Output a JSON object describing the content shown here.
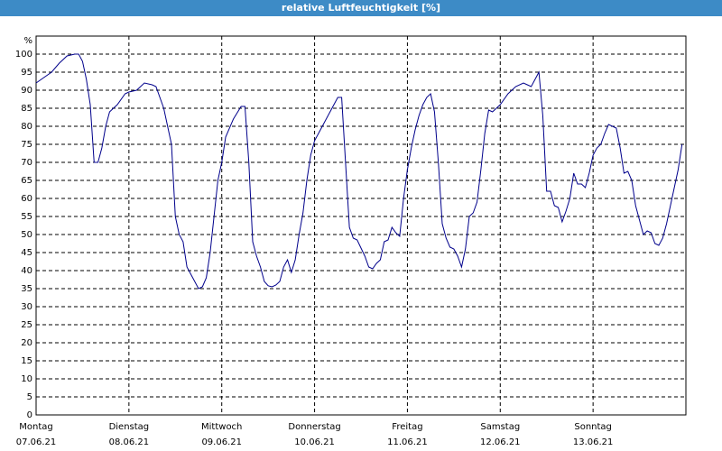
{
  "chart_data": {
    "type": "line",
    "title": "relative Luftfeuchtigkeit [%]",
    "ylabel": "%",
    "xlim": [
      0,
      168
    ],
    "xticks": [
      {
        "value": 0,
        "label": "Montag",
        "date": "07.06.21"
      },
      {
        "value": 24,
        "label": "Dienstag",
        "date": "08.06.21"
      },
      {
        "value": 48,
        "label": "Mittwoch",
        "date": "09.06.21"
      },
      {
        "value": 72,
        "label": "Donnerstag",
        "date": "10.06.21"
      },
      {
        "value": 96,
        "label": "Freitag",
        "date": "11.06.21"
      },
      {
        "value": 120,
        "label": "Samstag",
        "date": "12.06.21"
      },
      {
        "value": 144,
        "label": "Sonntag",
        "date": "13.06.21"
      }
    ],
    "ylim": [
      0,
      105
    ],
    "yticks": [
      0,
      5,
      10,
      15,
      20,
      25,
      30,
      35,
      40,
      45,
      50,
      55,
      60,
      65,
      70,
      75,
      80,
      85,
      90,
      95,
      100
    ],
    "grid": true,
    "x": [
      0,
      2,
      4,
      6,
      8,
      10,
      11,
      12,
      13,
      14,
      15,
      16,
      17,
      18,
      19,
      21,
      23,
      24,
      26,
      28,
      30,
      31,
      33,
      35,
      36,
      37,
      38,
      39,
      41,
      42,
      43,
      44,
      45,
      46,
      47,
      48,
      49,
      51,
      53,
      54,
      55,
      56,
      57,
      58,
      59,
      60,
      61,
      62,
      63,
      64,
      65,
      66,
      67,
      68,
      69,
      70,
      71,
      72,
      74,
      76,
      78,
      79,
      80,
      81,
      82,
      83,
      85,
      86,
      87,
      88,
      89,
      90,
      91,
      92,
      93,
      94,
      95,
      96,
      97,
      98,
      99,
      100,
      101,
      102,
      103,
      104,
      105,
      106,
      107,
      108,
      109,
      110,
      111,
      112,
      113,
      114,
      115,
      116,
      117,
      118,
      120,
      122,
      124,
      126,
      127,
      128,
      129,
      130,
      131,
      132,
      133,
      134,
      135,
      136,
      137,
      138,
      139,
      140,
      141,
      142,
      143,
      144,
      145,
      146,
      147,
      148,
      149,
      150,
      151,
      152,
      153,
      154,
      155,
      156,
      157,
      158,
      159,
      160,
      161,
      162,
      163,
      164,
      165,
      166,
      167
    ],
    "series": [
      {
        "name": "relative Luftfeuchtigkeit",
        "color": "#00008b",
        "values": [
          92,
          93.5,
          95,
          97.5,
          99.5,
          100,
          100,
          98,
          93,
          86,
          70,
          70,
          74,
          80,
          84,
          86,
          89,
          89.5,
          90,
          92,
          91.5,
          91,
          85,
          75,
          55,
          50,
          48,
          41,
          37,
          35,
          35.5,
          38,
          45,
          55,
          65,
          70,
          77,
          82,
          85.5,
          85.5,
          70,
          48,
          44,
          41,
          37,
          35.8,
          35.5,
          36,
          37,
          41,
          43,
          39.5,
          43,
          50,
          56,
          65,
          72,
          76,
          80,
          84,
          88,
          88,
          70,
          52,
          49,
          48.5,
          44,
          41,
          40.5,
          42,
          43,
          48,
          48.5,
          52,
          50.5,
          49.5,
          60,
          68,
          74,
          79,
          83,
          86,
          88,
          89,
          84,
          70,
          53,
          49,
          46.5,
          46,
          44,
          41,
          46,
          55,
          56,
          59,
          68,
          78,
          84.5,
          84,
          86,
          89,
          91,
          92,
          91.5,
          91,
          93,
          95,
          83,
          62,
          62,
          58,
          57.5,
          53.5,
          56.5,
          60,
          67,
          64,
          64,
          63,
          67,
          72,
          74,
          75,
          78,
          80.5,
          80,
          79.5,
          74,
          67,
          67.5,
          65,
          58,
          54,
          50,
          51,
          50.5,
          47.5,
          47,
          49,
          53,
          58,
          63,
          68,
          75
        ]
      }
    ]
  }
}
